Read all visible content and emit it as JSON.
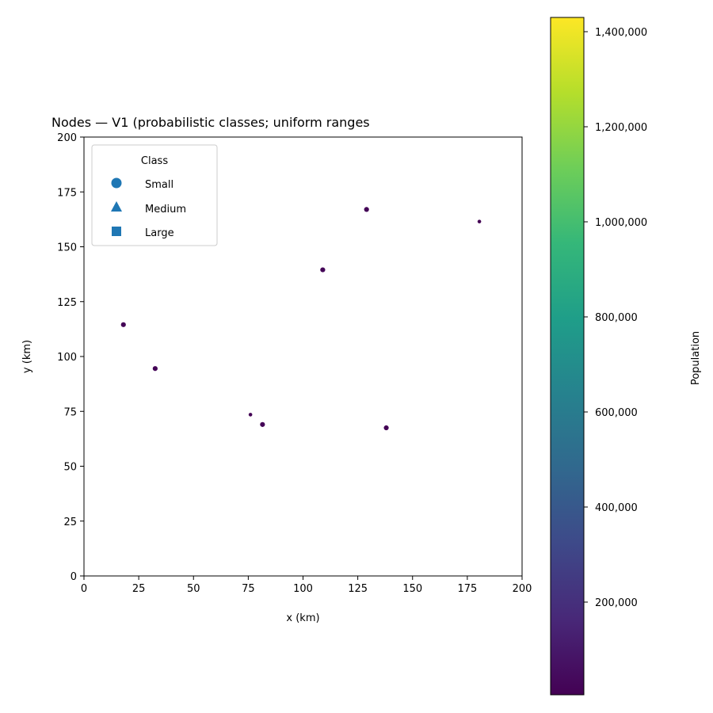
{
  "chart_data": {
    "type": "scatter",
    "title": "Nodes — V1 (probabilistic classes; uniform ranges",
    "xlabel": "x (km)",
    "ylabel": "y (km)",
    "xlim": [
      0,
      200
    ],
    "ylim": [
      0,
      200
    ],
    "x_ticks": [
      "0",
      "25",
      "50",
      "75",
      "100",
      "125",
      "150",
      "175",
      "200"
    ],
    "y_ticks": [
      "0",
      "25",
      "50",
      "75",
      "100",
      "125",
      "150",
      "175",
      "200"
    ],
    "grid": false,
    "legend": {
      "title": "Class",
      "placement": "upper-left",
      "entries": [
        {
          "label": "Small",
          "marker": "circle"
        },
        {
          "label": "Medium",
          "marker": "triangle"
        },
        {
          "label": "Large",
          "marker": "square"
        }
      ],
      "marker_color": "#1f77b4"
    },
    "points": [
      {
        "x": 18,
        "y": 114.5,
        "class": "Small",
        "population": 12000,
        "size": "medium"
      },
      {
        "x": 32.5,
        "y": 94.5,
        "class": "Small",
        "population": 15000,
        "size": "medium"
      },
      {
        "x": 76,
        "y": 73.5,
        "class": "Small",
        "population": 8000,
        "size": "small"
      },
      {
        "x": 81.5,
        "y": 69,
        "class": "Small",
        "population": 18000,
        "size": "medium"
      },
      {
        "x": 109,
        "y": 139.5,
        "class": "Small",
        "population": 20000,
        "size": "medium"
      },
      {
        "x": 129,
        "y": 167,
        "class": "Small",
        "population": 16000,
        "size": "medium"
      },
      {
        "x": 138,
        "y": 67.5,
        "class": "Small",
        "population": 14000,
        "size": "medium"
      },
      {
        "x": 180.5,
        "y": 161.5,
        "class": "Small",
        "population": 7000,
        "size": "small"
      }
    ],
    "colorbar": {
      "label": "Population",
      "min": 5000,
      "max": 1430000,
      "colormap": "viridis",
      "ticks": [
        {
          "value": 200000,
          "label": "200,000"
        },
        {
          "value": 400000,
          "label": "400,000"
        },
        {
          "value": 600000,
          "label": "600,000"
        },
        {
          "value": 800000,
          "label": "800,000"
        },
        {
          "value": 1000000,
          "label": "1,000,000"
        },
        {
          "value": 1200000,
          "label": "1,200,000"
        },
        {
          "value": 1400000,
          "label": "1,400,000"
        }
      ]
    },
    "colors": {
      "viridis": [
        "#440154",
        "#482878",
        "#3e4989",
        "#31688e",
        "#26828e",
        "#1f9e89",
        "#35b779",
        "#6ece58",
        "#b5de2b",
        "#fde725"
      ]
    }
  }
}
